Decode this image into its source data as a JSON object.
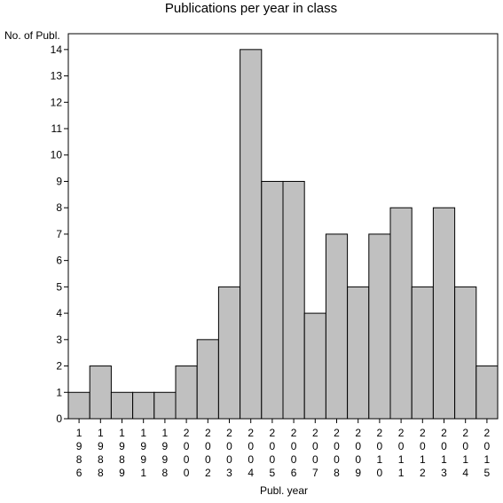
{
  "chart_data": {
    "type": "bar",
    "title": "Publications per year in class",
    "ylabel": "No. of Publ.",
    "xlabel": "Publ. year",
    "categories": [
      "1986",
      "1988",
      "1989",
      "1991",
      "1998",
      "2000",
      "2002",
      "2003",
      "2004",
      "2005",
      "2006",
      "2007",
      "2008",
      "2009",
      "2010",
      "2011",
      "2012",
      "2013",
      "2014",
      "2015"
    ],
    "values": [
      1,
      2,
      1,
      1,
      1,
      2,
      3,
      5,
      14,
      9,
      9,
      4,
      7,
      5,
      7,
      8,
      5,
      8,
      5,
      2
    ],
    "ylim": [
      0,
      14.6
    ],
    "yticks": [
      "0",
      "1",
      "2",
      "3",
      "4",
      "5",
      "6",
      "7",
      "8",
      "9",
      "10",
      "11",
      "12",
      "13",
      "14"
    ],
    "grid": false,
    "bar_color": "#c0c0c0",
    "edge_color": "#000000"
  }
}
